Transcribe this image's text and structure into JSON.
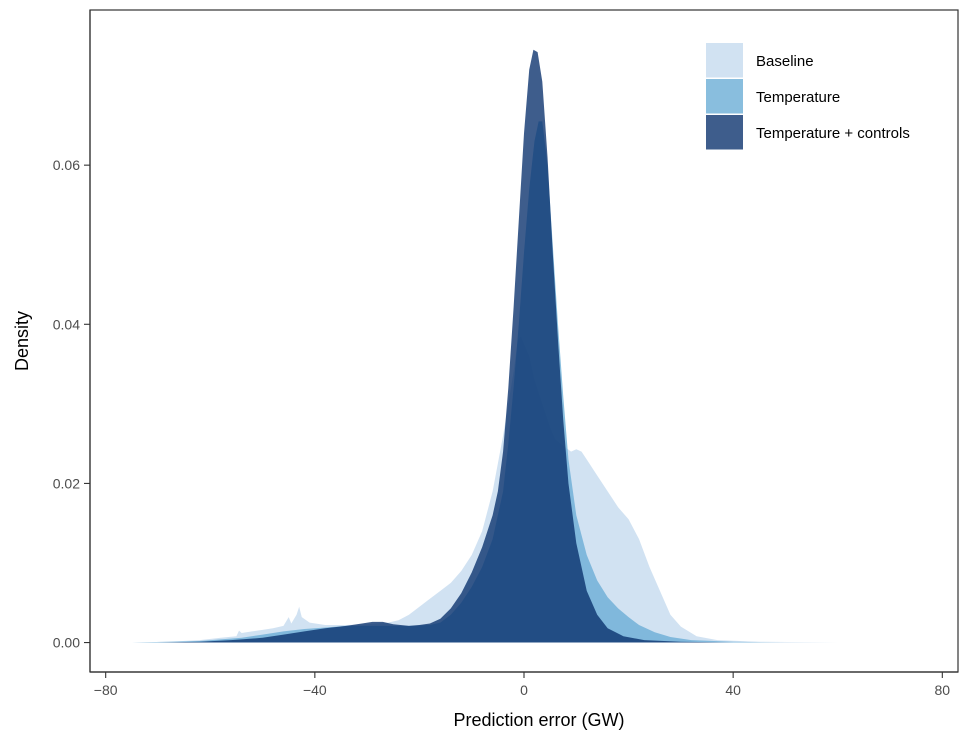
{
  "chart_data": {
    "type": "area",
    "subtype": "density",
    "xlabel": "Prediction error (GW)",
    "ylabel": "Density",
    "xlim": [
      -83,
      83
    ],
    "ylim": [
      -0.0037,
      0.0795
    ],
    "x_ticks": [
      {
        "value": -80,
        "label": "−80"
      },
      {
        "value": -40,
        "label": "−40"
      },
      {
        "value": 0,
        "label": "0"
      },
      {
        "value": 40,
        "label": "40"
      },
      {
        "value": 80,
        "label": "80"
      }
    ],
    "y_ticks": [
      {
        "value": 0,
        "label": "0.00"
      },
      {
        "value": 0.02,
        "label": "0.02"
      },
      {
        "value": 0.04,
        "label": "0.04"
      },
      {
        "value": 0.06,
        "label": "0.06"
      }
    ],
    "grid": false,
    "legend_position": "top-right",
    "series": [
      {
        "name": "Baseline",
        "color": "#c6dbef",
        "opacity": 0.8,
        "points": [
          [
            -75,
            0
          ],
          [
            -68,
            0.0001
          ],
          [
            -62,
            0.0003
          ],
          [
            -58,
            0.0006
          ],
          [
            -55,
            0.0008
          ],
          [
            -54.5,
            0.0015
          ],
          [
            -54,
            0.0012
          ],
          [
            -52,
            0.0014
          ],
          [
            -50,
            0.0016
          ],
          [
            -48,
            0.0018
          ],
          [
            -46,
            0.0021
          ],
          [
            -45,
            0.0032
          ],
          [
            -44.5,
            0.0024
          ],
          [
            -43.5,
            0.0035
          ],
          [
            -43,
            0.0045
          ],
          [
            -42.5,
            0.0032
          ],
          [
            -41,
            0.0025
          ],
          [
            -38,
            0.0022
          ],
          [
            -34,
            0.0022
          ],
          [
            -30,
            0.0023
          ],
          [
            -26,
            0.0025
          ],
          [
            -24,
            0.0028
          ],
          [
            -22,
            0.0035
          ],
          [
            -20,
            0.0045
          ],
          [
            -18,
            0.0055
          ],
          [
            -16,
            0.0065
          ],
          [
            -14,
            0.0075
          ],
          [
            -12,
            0.009
          ],
          [
            -10,
            0.011
          ],
          [
            -8,
            0.014
          ],
          [
            -6,
            0.019
          ],
          [
            -4,
            0.026
          ],
          [
            -2,
            0.034
          ],
          [
            -1.2,
            0.038
          ],
          [
            -0.6,
            0.0385
          ],
          [
            0,
            0.0375
          ],
          [
            1,
            0.036
          ],
          [
            2,
            0.033
          ],
          [
            3,
            0.031
          ],
          [
            4,
            0.029
          ],
          [
            5,
            0.027
          ],
          [
            6,
            0.0255
          ],
          [
            7,
            0.025
          ],
          [
            8,
            0.0245
          ],
          [
            9,
            0.024
          ],
          [
            10,
            0.0243
          ],
          [
            11,
            0.024
          ],
          [
            12,
            0.023
          ],
          [
            14,
            0.021
          ],
          [
            16,
            0.019
          ],
          [
            18,
            0.017
          ],
          [
            20,
            0.0155
          ],
          [
            22,
            0.013
          ],
          [
            24,
            0.0095
          ],
          [
            26,
            0.0065
          ],
          [
            28,
            0.0035
          ],
          [
            30,
            0.002
          ],
          [
            33,
            0.0008
          ],
          [
            37,
            0.0003
          ],
          [
            45,
            0.0001
          ],
          [
            60,
            0
          ]
        ]
      },
      {
        "name": "Temperature",
        "color": "#6baed6",
        "opacity": 0.8,
        "points": [
          [
            -75,
            0
          ],
          [
            -68,
            0.0001
          ],
          [
            -62,
            0.0002
          ],
          [
            -58,
            0.0004
          ],
          [
            -54,
            0.0006
          ],
          [
            -50,
            0.001
          ],
          [
            -46,
            0.0014
          ],
          [
            -42,
            0.0017
          ],
          [
            -38,
            0.0019
          ],
          [
            -34,
            0.0021
          ],
          [
            -30,
            0.0021
          ],
          [
            -26,
            0.0021
          ],
          [
            -22,
            0.0021
          ],
          [
            -18,
            0.0022
          ],
          [
            -16,
            0.0025
          ],
          [
            -14,
            0.0035
          ],
          [
            -12,
            0.005
          ],
          [
            -10,
            0.007
          ],
          [
            -8,
            0.0095
          ],
          [
            -6,
            0.013
          ],
          [
            -5,
            0.016
          ],
          [
            -4,
            0.019
          ],
          [
            -3,
            0.025
          ],
          [
            -2,
            0.032
          ],
          [
            -1,
            0.04
          ],
          [
            0,
            0.049
          ],
          [
            1,
            0.057
          ],
          [
            2,
            0.063
          ],
          [
            2.8,
            0.0655
          ],
          [
            3.5,
            0.0655
          ],
          [
            4.5,
            0.06
          ],
          [
            5.5,
            0.05
          ],
          [
            6.5,
            0.04
          ],
          [
            7.5,
            0.031
          ],
          [
            8.5,
            0.023
          ],
          [
            10,
            0.016
          ],
          [
            12,
            0.011
          ],
          [
            14,
            0.0078
          ],
          [
            16,
            0.0057
          ],
          [
            18,
            0.0043
          ],
          [
            20,
            0.0032
          ],
          [
            22,
            0.0022
          ],
          [
            25,
            0.0013
          ],
          [
            28,
            0.0007
          ],
          [
            32,
            0.0003
          ],
          [
            40,
            0.0001
          ],
          [
            50,
            0
          ]
        ]
      },
      {
        "name": "Temperature + controls",
        "color": "#08306b",
        "opacity": 0.78,
        "points": [
          [
            -70,
            0
          ],
          [
            -62,
            0.0001
          ],
          [
            -56,
            0.0003
          ],
          [
            -50,
            0.0006
          ],
          [
            -46,
            0.001
          ],
          [
            -42,
            0.0014
          ],
          [
            -38,
            0.0018
          ],
          [
            -34,
            0.0021
          ],
          [
            -31,
            0.0024
          ],
          [
            -29,
            0.0026
          ],
          [
            -27,
            0.0026
          ],
          [
            -25,
            0.0023
          ],
          [
            -22,
            0.0021
          ],
          [
            -20,
            0.0022
          ],
          [
            -18,
            0.0024
          ],
          [
            -16,
            0.003
          ],
          [
            -14,
            0.0043
          ],
          [
            -12,
            0.0062
          ],
          [
            -10,
            0.0088
          ],
          [
            -8,
            0.012
          ],
          [
            -6,
            0.016
          ],
          [
            -5,
            0.019
          ],
          [
            -4,
            0.024
          ],
          [
            -3,
            0.032
          ],
          [
            -2,
            0.042
          ],
          [
            -1,
            0.053
          ],
          [
            0,
            0.064
          ],
          [
            1,
            0.072
          ],
          [
            1.8,
            0.0745
          ],
          [
            2.6,
            0.0742
          ],
          [
            3.5,
            0.0705
          ],
          [
            4.5,
            0.061
          ],
          [
            5.5,
            0.049
          ],
          [
            6.5,
            0.038
          ],
          [
            7.5,
            0.028
          ],
          [
            8.5,
            0.02
          ],
          [
            10,
            0.0125
          ],
          [
            12,
            0.0065
          ],
          [
            14,
            0.0035
          ],
          [
            16,
            0.0018
          ],
          [
            19,
            0.0008
          ],
          [
            23,
            0.0003
          ],
          [
            30,
            0.0001
          ],
          [
            40,
            0
          ]
        ]
      }
    ]
  }
}
